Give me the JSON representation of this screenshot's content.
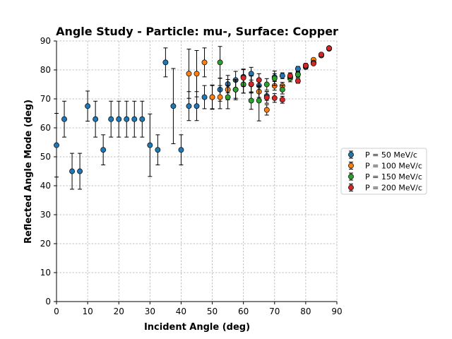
{
  "chart_data": {
    "type": "scatter",
    "title": "Angle Study - Particle: mu-, Surface: Copper",
    "xlabel": "Incident Angle (deg)",
    "ylabel": "Reflected Angle Mode (deg)",
    "xlim": [
      0,
      90
    ],
    "ylim": [
      0,
      90
    ],
    "xticks": [
      0,
      10,
      20,
      30,
      40,
      50,
      60,
      70,
      80,
      90
    ],
    "yticks": [
      0,
      10,
      20,
      30,
      40,
      50,
      60,
      70,
      80,
      90
    ],
    "grid": true,
    "legend_position": "center-right",
    "series": [
      {
        "name": "P = 50 MeV/c",
        "color": "#1f77b4",
        "points": [
          {
            "x": 0,
            "y": 54,
            "err": 11
          },
          {
            "x": 2.5,
            "y": 63,
            "err": 6.2
          },
          {
            "x": 5,
            "y": 45,
            "err": 6.2
          },
          {
            "x": 7.5,
            "y": 45,
            "err": 6.2
          },
          {
            "x": 10,
            "y": 67.5,
            "err": 5.2
          },
          {
            "x": 12.5,
            "y": 63,
            "err": 6.2
          },
          {
            "x": 15,
            "y": 52.4,
            "err": 5.2
          },
          {
            "x": 17.5,
            "y": 63,
            "err": 6.2
          },
          {
            "x": 20,
            "y": 63,
            "err": 6.2
          },
          {
            "x": 22.5,
            "y": 63,
            "err": 6.2
          },
          {
            "x": 25,
            "y": 63,
            "err": 6.2
          },
          {
            "x": 27.5,
            "y": 63,
            "err": 6.2
          },
          {
            "x": 30,
            "y": 54,
            "err": 10.8
          },
          {
            "x": 32.5,
            "y": 52.4,
            "err": 5.2
          },
          {
            "x": 35,
            "y": 82.6,
            "err": 5
          },
          {
            "x": 37.5,
            "y": 67.5,
            "err": 13
          },
          {
            "x": 40,
            "y": 52.4,
            "err": 5.2
          },
          {
            "x": 42.5,
            "y": 67.5,
            "err": 5
          },
          {
            "x": 45,
            "y": 67.5,
            "err": 5
          },
          {
            "x": 47.5,
            "y": 70.6,
            "err": 4
          },
          {
            "x": 50,
            "y": 70.6,
            "err": 4.2
          },
          {
            "x": 52.5,
            "y": 73.2,
            "err": 4
          },
          {
            "x": 55,
            "y": 75.1,
            "err": 3
          },
          {
            "x": 57.5,
            "y": 76.5,
            "err": 3
          },
          {
            "x": 60,
            "y": 77.6,
            "err": 2.5
          },
          {
            "x": 62.5,
            "y": 78.7,
            "err": 2.2
          },
          {
            "x": 65,
            "y": 74.6,
            "err": 2
          },
          {
            "x": 67.5,
            "y": 71,
            "err": 1.5
          },
          {
            "x": 70,
            "y": 77.5,
            "err": 1.2
          },
          {
            "x": 72.5,
            "y": 78,
            "err": 1
          },
          {
            "x": 75,
            "y": 77.5,
            "err": 1
          },
          {
            "x": 77.5,
            "y": 80.4,
            "err": 0.8
          },
          {
            "x": 80,
            "y": 81,
            "err": 0.7
          },
          {
            "x": 82.5,
            "y": 82.5,
            "err": 0.5
          },
          {
            "x": 85,
            "y": 85,
            "err": 0.5
          },
          {
            "x": 87.5,
            "y": 87.5,
            "err": 0.5
          }
        ]
      },
      {
        "name": "P = 100 MeV/c",
        "color": "#ff7f0e",
        "points": [
          {
            "x": 42.5,
            "y": 78.7,
            "err": 8.5
          },
          {
            "x": 45,
            "y": 78.7,
            "err": 8
          },
          {
            "x": 47.5,
            "y": 82.6,
            "err": 5
          },
          {
            "x": 50,
            "y": 70.6,
            "err": 4
          },
          {
            "x": 52.5,
            "y": 70.6,
            "err": 4
          },
          {
            "x": 55,
            "y": 73.2,
            "err": 3.5
          },
          {
            "x": 57.5,
            "y": 73.2,
            "err": 3
          },
          {
            "x": 60,
            "y": 75,
            "err": 3
          },
          {
            "x": 62.5,
            "y": 75,
            "err": 3
          },
          {
            "x": 65,
            "y": 72.5,
            "err": 2
          },
          {
            "x": 67.5,
            "y": 66.2,
            "err": 1.8
          },
          {
            "x": 70,
            "y": 74.5,
            "err": 1.5
          },
          {
            "x": 72.5,
            "y": 74.5,
            "err": 1.2
          },
          {
            "x": 75,
            "y": 77.5,
            "err": 1
          },
          {
            "x": 77.5,
            "y": 78.5,
            "err": 0.8
          },
          {
            "x": 80,
            "y": 81.5,
            "err": 0.7
          },
          {
            "x": 82.5,
            "y": 83.5,
            "err": 0.5
          },
          {
            "x": 85,
            "y": 85.3,
            "err": 0.5
          },
          {
            "x": 87.5,
            "y": 87.5,
            "err": 0.5
          }
        ]
      },
      {
        "name": "P = 150 MeV/c",
        "color": "#2ca02c",
        "points": [
          {
            "x": 52.5,
            "y": 82.6,
            "err": 5.5
          },
          {
            "x": 55,
            "y": 70.6,
            "err": 4
          },
          {
            "x": 57.5,
            "y": 73.2,
            "err": 3.5
          },
          {
            "x": 60,
            "y": 75,
            "err": 3
          },
          {
            "x": 62.5,
            "y": 69.4,
            "err": 3
          },
          {
            "x": 65,
            "y": 69.4,
            "err": 7
          },
          {
            "x": 67.5,
            "y": 75,
            "err": 2
          },
          {
            "x": 70,
            "y": 77.1,
            "err": 2.5
          },
          {
            "x": 72.5,
            "y": 73.2,
            "err": 1.5
          },
          {
            "x": 75,
            "y": 77.1,
            "err": 1.2
          },
          {
            "x": 77.5,
            "y": 78.4,
            "err": 1
          },
          {
            "x": 80,
            "y": 81.3,
            "err": 0.7
          },
          {
            "x": 82.5,
            "y": 82.5,
            "err": 0.5
          },
          {
            "x": 85,
            "y": 85,
            "err": 0.5
          },
          {
            "x": 87.5,
            "y": 87.3,
            "err": 0.5
          }
        ]
      },
      {
        "name": "P = 200 MeV/c",
        "color": "#d62728",
        "points": [
          {
            "x": 60,
            "y": 77.3,
            "err": 3
          },
          {
            "x": 62.5,
            "y": 75.1,
            "err": 2.8
          },
          {
            "x": 65,
            "y": 76.5,
            "err": 2.2
          },
          {
            "x": 67.5,
            "y": 70.5,
            "err": 2
          },
          {
            "x": 70,
            "y": 70.3,
            "err": 1.5
          },
          {
            "x": 72.5,
            "y": 69.7,
            "err": 1.2
          },
          {
            "x": 75,
            "y": 78,
            "err": 1
          },
          {
            "x": 77.5,
            "y": 76.2,
            "err": 0.8
          },
          {
            "x": 80,
            "y": 81.5,
            "err": 0.7
          },
          {
            "x": 82.5,
            "y": 82.2,
            "err": 0.5
          },
          {
            "x": 85,
            "y": 85.3,
            "err": 0.5
          },
          {
            "x": 87.5,
            "y": 87.5,
            "err": 0.5
          }
        ]
      }
    ]
  }
}
